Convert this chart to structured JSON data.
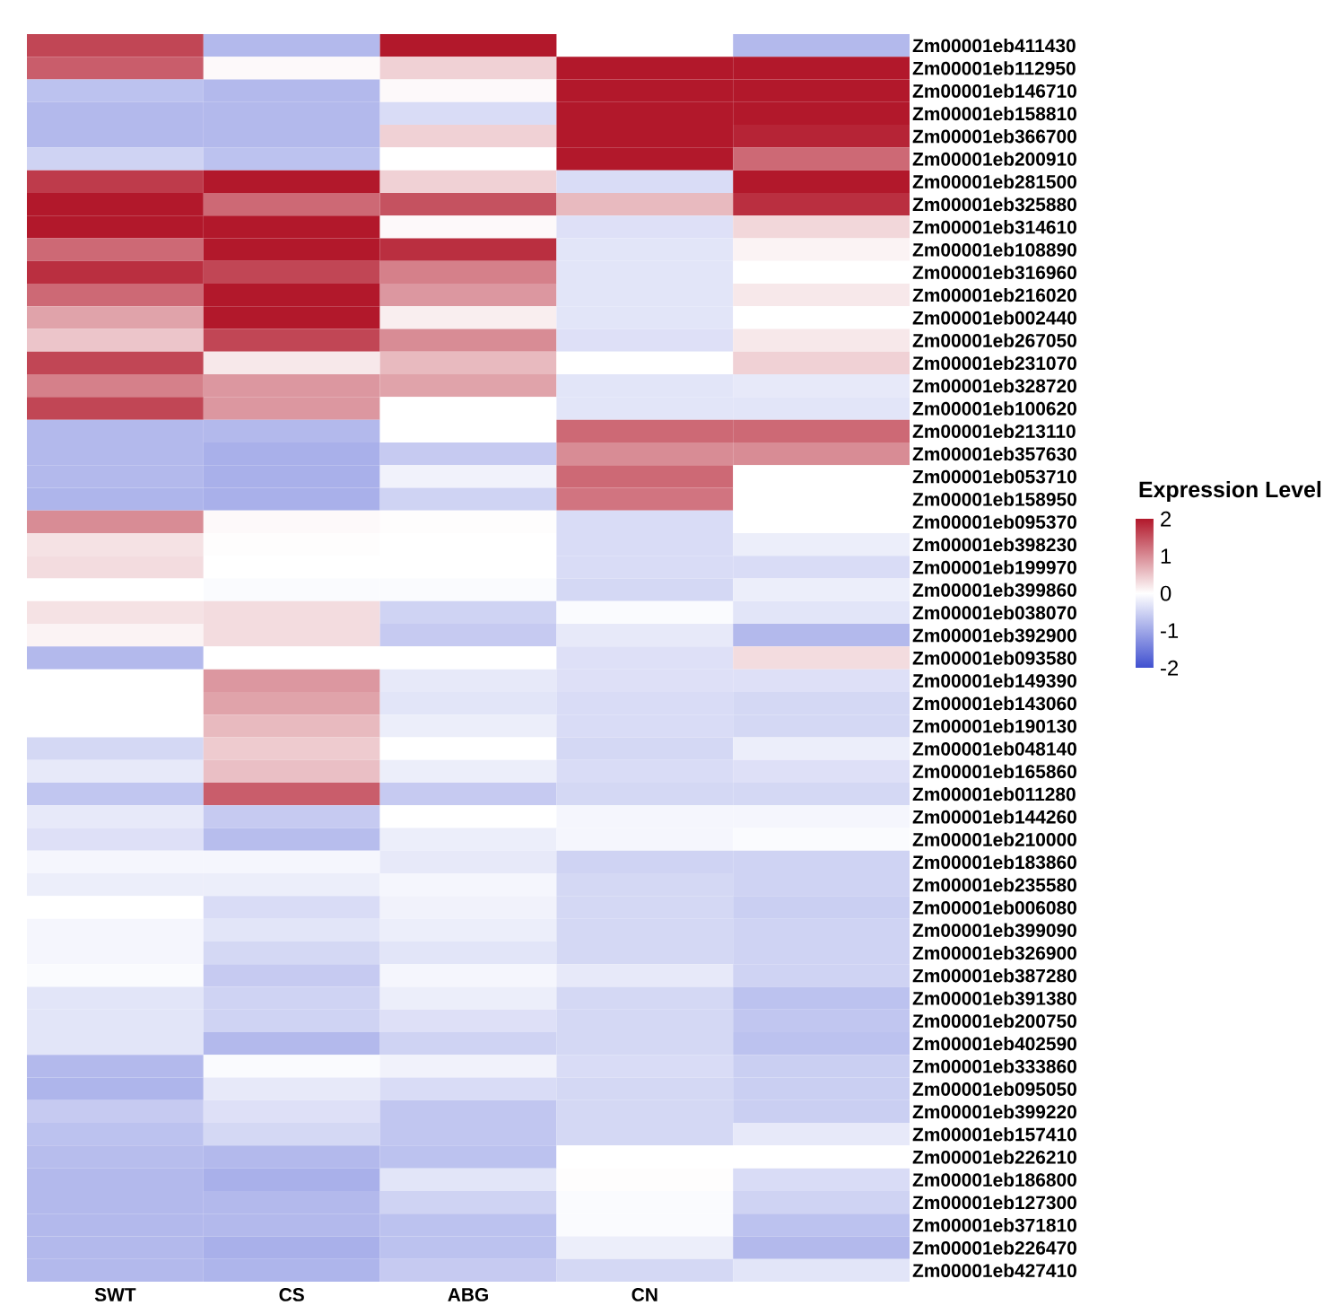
{
  "chart_data": {
    "type": "heatmap",
    "categories": [
      "SWT",
      "CS",
      "ABG",
      "CN",
      null
    ],
    "y_categories": [
      "Zm00001eb411430",
      "Zm00001eb112950",
      "Zm00001eb146710",
      "Zm00001eb158810",
      "Zm00001eb366700",
      "Zm00001eb200910",
      "Zm00001eb281500",
      "Zm00001eb325880",
      "Zm00001eb314610",
      "Zm00001eb108890",
      "Zm00001eb316960",
      "Zm00001eb216020",
      "Zm00001eb002440",
      "Zm00001eb267050",
      "Zm00001eb231070",
      "Zm00001eb328720",
      "Zm00001eb100620",
      "Zm00001eb213110",
      "Zm00001eb357630",
      "Zm00001eb053710",
      "Zm00001eb158950",
      "Zm00001eb095370",
      "Zm00001eb398230",
      "Zm00001eb199970",
      "Zm00001eb399860",
      "Zm00001eb038070",
      "Zm00001eb392900",
      "Zm00001eb093580",
      "Zm00001eb149390",
      "Zm00001eb143060",
      "Zm00001eb190130",
      "Zm00001eb048140",
      "Zm00001eb165860",
      "Zm00001eb011280",
      "Zm00001eb144260",
      "Zm00001eb210000",
      "Zm00001eb183860",
      "Zm00001eb235580",
      "Zm00001eb006080",
      "Zm00001eb399090",
      "Zm00001eb326900",
      "Zm00001eb387280",
      "Zm00001eb391380",
      "Zm00001eb200750",
      "Zm00001eb402590",
      "Zm00001eb333860",
      "Zm00001eb095050",
      "Zm00001eb399220",
      "Zm00001eb157410",
      "Zm00001eb226210",
      "Zm00001eb186800",
      "Zm00001eb127300",
      "Zm00001eb371810",
      "Zm00001eb226470",
      "Zm00001eb427410"
    ],
    "cells": [
      [
        1.6,
        -0.8,
        2,
        null,
        -0.8
      ],
      [
        1.4,
        0.05,
        0.4,
        2,
        2
      ],
      [
        -0.7,
        -0.8,
        0.05,
        2,
        2
      ],
      [
        -0.8,
        -0.8,
        -0.4,
        2,
        2
      ],
      [
        -0.8,
        -0.8,
        0.4,
        2,
        1.9
      ],
      [
        -0.5,
        -0.7,
        0,
        2,
        1.3
      ],
      [
        1.7,
        2,
        0.4,
        -0.4,
        2
      ],
      [
        2,
        1.3,
        1.5,
        0.6,
        1.8
      ],
      [
        2,
        2,
        0.05,
        -0.35,
        0.35
      ],
      [
        1.3,
        2,
        1.8,
        -0.3,
        0.1
      ],
      [
        1.8,
        1.6,
        1.1,
        -0.3,
        0
      ],
      [
        1.3,
        2,
        0.9,
        -0.3,
        0.2
      ],
      [
        0.8,
        2,
        0.15,
        -0.3,
        0
      ],
      [
        0.5,
        1.6,
        1.0,
        -0.35,
        0.2
      ],
      [
        1.6,
        0.2,
        0.6,
        0,
        0.4
      ],
      [
        1.1,
        0.9,
        0.8,
        -0.3,
        -0.25
      ],
      [
        1.6,
        0.9,
        0,
        -0.3,
        -0.3
      ],
      [
        -0.8,
        -0.8,
        0,
        1.3,
        1.3
      ],
      [
        -0.8,
        -0.9,
        -0.6,
        1.0,
        1.0
      ],
      [
        -0.8,
        -0.9,
        -0.15,
        1.3,
        0
      ],
      [
        -0.85,
        -0.9,
        -0.5,
        1.2,
        0
      ],
      [
        1.0,
        0.05,
        0.02,
        -0.4,
        0
      ],
      [
        0.25,
        0.02,
        0,
        -0.4,
        -0.2
      ],
      [
        0.3,
        0,
        0,
        -0.4,
        -0.4
      ],
      [
        0,
        -0.05,
        -0.05,
        -0.45,
        -0.2
      ],
      [
        0.25,
        0.3,
        -0.5,
        -0.05,
        -0.3
      ],
      [
        0.1,
        0.3,
        -0.6,
        -0.25,
        -0.8
      ],
      [
        -0.8,
        0,
        0,
        -0.35,
        0.3
      ],
      [
        0,
        0.9,
        -0.25,
        -0.35,
        -0.35
      ],
      [
        0,
        0.8,
        -0.3,
        -0.4,
        -0.45
      ],
      [
        0,
        0.6,
        -0.2,
        -0.4,
        -0.45
      ],
      [
        -0.45,
        0.45,
        0,
        -0.45,
        -0.2
      ],
      [
        -0.25,
        0.55,
        -0.2,
        -0.4,
        -0.35
      ],
      [
        -0.65,
        1.4,
        -0.6,
        -0.45,
        -0.45
      ],
      [
        -0.25,
        -0.6,
        0,
        -0.1,
        -0.1
      ],
      [
        -0.35,
        -0.75,
        -0.2,
        -0.1,
        -0.05
      ],
      [
        -0.1,
        -0.1,
        -0.25,
        -0.5,
        -0.5
      ],
      [
        -0.2,
        -0.2,
        -0.1,
        -0.45,
        -0.5
      ],
      [
        0,
        -0.4,
        -0.15,
        -0.45,
        -0.55
      ],
      [
        -0.1,
        -0.3,
        -0.2,
        -0.45,
        -0.5
      ],
      [
        -0.1,
        -0.45,
        -0.3,
        -0.45,
        -0.5
      ],
      [
        -0.05,
        -0.6,
        -0.1,
        -0.25,
        -0.5
      ],
      [
        -0.3,
        -0.5,
        -0.2,
        -0.45,
        -0.7
      ],
      [
        -0.3,
        -0.5,
        -0.35,
        -0.45,
        -0.65
      ],
      [
        -0.3,
        -0.8,
        -0.5,
        -0.45,
        -0.7
      ],
      [
        -0.8,
        -0.05,
        -0.15,
        -0.4,
        -0.55
      ],
      [
        -0.85,
        -0.25,
        -0.4,
        -0.45,
        -0.55
      ],
      [
        -0.6,
        -0.35,
        -0.65,
        -0.45,
        -0.55
      ],
      [
        -0.7,
        -0.45,
        -0.65,
        -0.45,
        -0.25
      ],
      [
        -0.75,
        -0.8,
        -0.7,
        0,
        0
      ],
      [
        -0.8,
        -0.9,
        -0.3,
        0.02,
        -0.4
      ],
      [
        -0.8,
        -0.8,
        -0.5,
        -0.05,
        -0.5
      ],
      [
        -0.8,
        -0.8,
        -0.7,
        -0.05,
        -0.7
      ],
      [
        -0.8,
        -0.9,
        -0.7,
        -0.2,
        -0.8
      ],
      [
        -0.8,
        -0.85,
        -0.6,
        -0.45,
        -0.3
      ]
    ],
    "clim": [
      -2,
      2
    ],
    "cticks": [
      -2,
      -1,
      0,
      1,
      2
    ],
    "clabel": "Expression Level"
  }
}
